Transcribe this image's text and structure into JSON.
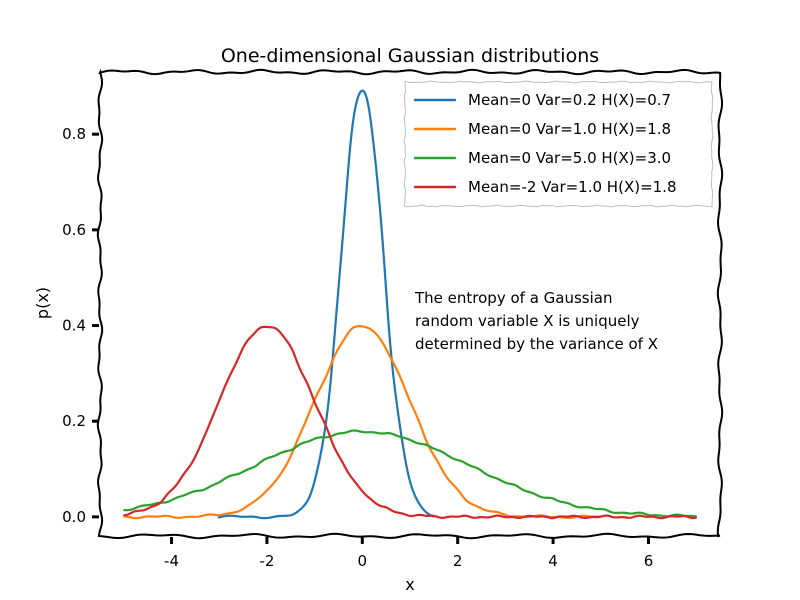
{
  "chart_data": {
    "type": "line",
    "title": "One-dimensional Gaussian distributions",
    "xlabel": "x",
    "ylabel": "p(x)",
    "xlim": [
      -5.5,
      7.5
    ],
    "ylim": [
      -0.04,
      0.93
    ],
    "xticks": [
      -4,
      -2,
      0,
      2,
      4,
      6
    ],
    "xtick_labels": [
      "-4",
      "-2",
      "0",
      "2",
      "4",
      "6"
    ],
    "yticks": [
      0.0,
      0.2,
      0.4,
      0.6,
      0.8
    ],
    "ytick_labels": [
      "0.0",
      "0.2",
      "0.4",
      "0.6",
      "0.8"
    ],
    "grid": false,
    "legend_position": "top-right",
    "series": [
      {
        "name": "Mean=0 Var=0.2 H(X)=0.7",
        "mean": 0,
        "variance": 0.2,
        "x_range": [
          -3,
          1.5
        ],
        "color": "#1f77b4"
      },
      {
        "name": "Mean=0 Var=1.0 H(X)=1.8",
        "mean": 0,
        "variance": 1.0,
        "x_range": [
          -5,
          5
        ],
        "color": "#ff7f0e"
      },
      {
        "name": "Mean=0 Var=5.0 H(X)=3.0",
        "mean": 0,
        "variance": 5.0,
        "x_range": [
          -5,
          7
        ],
        "color": "#2ca02c"
      },
      {
        "name": "Mean=-2 Var=1.0 H(X)=1.8",
        "mean": -2,
        "variance": 1.0,
        "x_range": [
          -5,
          7
        ],
        "color": "#d62728"
      }
    ],
    "annotation": {
      "lines": [
        "The entropy of a Gaussian",
        "random variable X is uniquely",
        "determined by the variance of X"
      ]
    }
  }
}
